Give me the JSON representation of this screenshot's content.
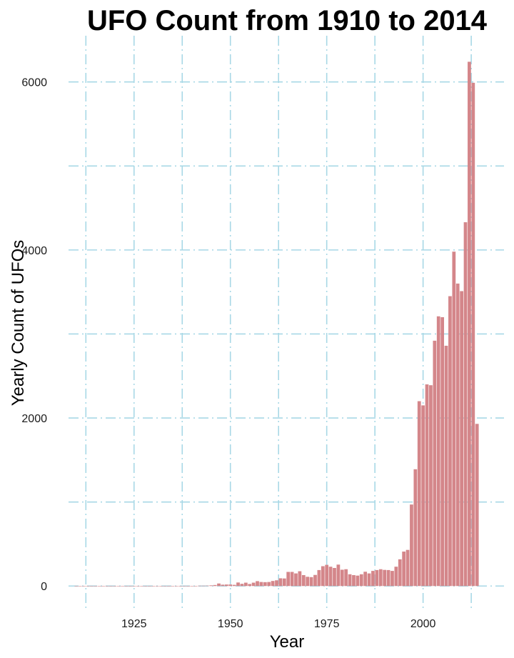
{
  "chart_data": {
    "type": "bar",
    "title": "UFO Count from 1910 to 2014",
    "xlabel": "Year",
    "ylabel": "Yearly Count of UFOs",
    "xlim": [
      1908,
      2021
    ],
    "ylim": [
      -270,
      6550
    ],
    "xticks": [
      1925,
      1950,
      1975,
      2000
    ],
    "yticks": [
      0,
      2000,
      4000,
      6000
    ],
    "grid": true,
    "colors": {
      "bar": "#d4868a",
      "grid": "#a8d8e6"
    },
    "x": [
      1910,
      1911,
      1912,
      1913,
      1914,
      1915,
      1916,
      1917,
      1918,
      1919,
      1920,
      1921,
      1922,
      1923,
      1924,
      1925,
      1926,
      1927,
      1928,
      1929,
      1930,
      1931,
      1932,
      1933,
      1934,
      1935,
      1936,
      1937,
      1938,
      1939,
      1940,
      1941,
      1942,
      1943,
      1944,
      1945,
      1946,
      1947,
      1948,
      1949,
      1950,
      1951,
      1952,
      1953,
      1954,
      1955,
      1956,
      1957,
      1958,
      1959,
      1960,
      1961,
      1962,
      1963,
      1964,
      1965,
      1966,
      1967,
      1968,
      1969,
      1970,
      1971,
      1972,
      1973,
      1974,
      1975,
      1976,
      1977,
      1978,
      1979,
      1980,
      1981,
      1982,
      1983,
      1984,
      1985,
      1986,
      1987,
      1988,
      1989,
      1990,
      1991,
      1992,
      1993,
      1994,
      1995,
      1996,
      1997,
      1998,
      1999,
      2000,
      2001,
      2002,
      2003,
      2004,
      2005,
      2006,
      2007,
      2008,
      2009,
      2010,
      2011,
      2012,
      2013,
      2014
    ],
    "values": [
      2,
      1,
      1,
      1,
      1,
      1,
      1,
      1,
      1,
      1,
      2,
      1,
      1,
      1,
      1,
      1,
      1,
      1,
      1,
      1,
      2,
      1,
      1,
      1,
      1,
      1,
      1,
      1,
      1,
      2,
      2,
      2,
      4,
      4,
      5,
      8,
      12,
      30,
      16,
      18,
      18,
      14,
      42,
      26,
      40,
      24,
      40,
      58,
      48,
      46,
      48,
      60,
      68,
      92,
      90,
      168,
      168,
      150,
      176,
      130,
      110,
      106,
      132,
      190,
      236,
      252,
      230,
      215,
      255,
      194,
      200,
      140,
      130,
      124,
      140,
      170,
      150,
      180,
      190,
      200,
      192,
      190,
      180,
      230,
      318,
      410,
      430,
      970,
      1390,
      2200,
      2150,
      2400,
      2390,
      2920,
      3210,
      3200,
      2860,
      3450,
      3980,
      3600,
      3510,
      4330,
      6240,
      5990,
      1930
    ]
  }
}
